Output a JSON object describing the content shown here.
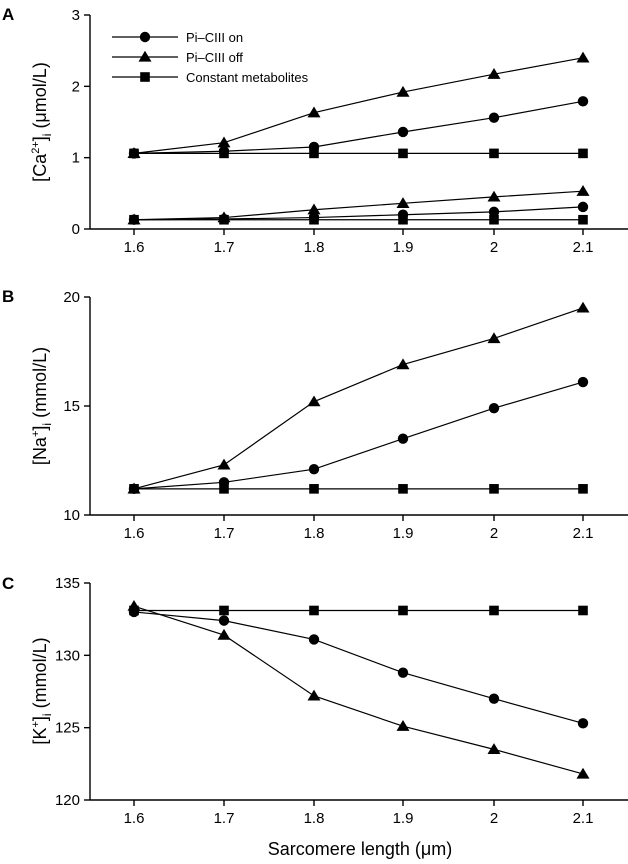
{
  "figure_xlabel": "Sarcomere length (μm)",
  "legend": [
    {
      "label": "Pi–CIII on",
      "marker": "circle"
    },
    {
      "label": "Pi–CIII off",
      "marker": "triangle"
    },
    {
      "label": "Constant metabolites",
      "marker": "square"
    }
  ],
  "chart_data": [
    {
      "panel": "A",
      "type": "line",
      "ylabel": {
        "pre": "[Ca",
        "sup": "2+",
        "post": "]",
        "sub": "i",
        "unit": " (μmol/L)"
      },
      "x": [
        1.6,
        1.7,
        1.8,
        1.9,
        2.0,
        2.1
      ],
      "xticks": [
        "1.6",
        "1.7",
        "1.8",
        "1.9",
        "2",
        "2.1"
      ],
      "ylim": [
        0,
        3
      ],
      "yticks": [
        0,
        1,
        2,
        3
      ],
      "series": [
        {
          "name": "Pi–CIII on (upper)",
          "marker": "circle",
          "values": [
            1.06,
            1.09,
            1.15,
            1.36,
            1.56,
            1.79
          ]
        },
        {
          "name": "Pi–CIII off (upper)",
          "marker": "triangle",
          "values": [
            1.06,
            1.21,
            1.63,
            1.92,
            2.17,
            2.4
          ]
        },
        {
          "name": "Constant metabolites (upper)",
          "marker": "square",
          "values": [
            1.06,
            1.06,
            1.06,
            1.06,
            1.06,
            1.06
          ]
        },
        {
          "name": "Pi–CIII on (lower)",
          "marker": "circle",
          "values": [
            0.13,
            0.14,
            0.16,
            0.2,
            0.24,
            0.31
          ]
        },
        {
          "name": "Pi–CIII off (lower)",
          "marker": "triangle",
          "values": [
            0.13,
            0.16,
            0.27,
            0.36,
            0.45,
            0.53
          ]
        },
        {
          "name": "Constant metabolites (lower)",
          "marker": "square",
          "values": [
            0.13,
            0.13,
            0.13,
            0.13,
            0.13,
            0.13
          ]
        }
      ]
    },
    {
      "panel": "B",
      "type": "line",
      "ylabel": {
        "pre": "[Na",
        "sup": "+",
        "post": "]",
        "sub": "i",
        "unit": " (mmol/L)"
      },
      "x": [
        1.6,
        1.7,
        1.8,
        1.9,
        2.0,
        2.1
      ],
      "xticks": [
        "1.6",
        "1.7",
        "1.8",
        "1.9",
        "2",
        "2.1"
      ],
      "ylim": [
        10,
        20
      ],
      "yticks": [
        10,
        15,
        20
      ],
      "series": [
        {
          "name": "Pi–CIII on",
          "marker": "circle",
          "values": [
            11.2,
            11.5,
            12.1,
            13.5,
            14.9,
            16.1
          ]
        },
        {
          "name": "Pi–CIII off",
          "marker": "triangle",
          "values": [
            11.2,
            12.3,
            15.2,
            16.9,
            18.1,
            19.5
          ]
        },
        {
          "name": "Constant metabolites",
          "marker": "square",
          "values": [
            11.2,
            11.2,
            11.2,
            11.2,
            11.2,
            11.2
          ]
        }
      ]
    },
    {
      "panel": "C",
      "type": "line",
      "ylabel": {
        "pre": "[K",
        "sup": "+",
        "post": "]",
        "sub": "i",
        "unit": " (mmol/L)"
      },
      "x": [
        1.6,
        1.7,
        1.8,
        1.9,
        2.0,
        2.1
      ],
      "xticks": [
        "1.6",
        "1.7",
        "1.8",
        "1.9",
        "2",
        "2.1"
      ],
      "ylim": [
        120,
        135
      ],
      "yticks": [
        120,
        125,
        130,
        135
      ],
      "series": [
        {
          "name": "Pi–CIII on",
          "marker": "circle",
          "values": [
            133.0,
            132.4,
            131.1,
            128.8,
            127.0,
            125.3
          ]
        },
        {
          "name": "Pi–CIII off",
          "marker": "triangle",
          "values": [
            133.4,
            131.4,
            127.2,
            125.1,
            123.5,
            121.8
          ]
        },
        {
          "name": "Constant metabolites",
          "marker": "square",
          "values": [
            133.1,
            133.1,
            133.1,
            133.1,
            133.1,
            133.1
          ]
        }
      ]
    }
  ]
}
